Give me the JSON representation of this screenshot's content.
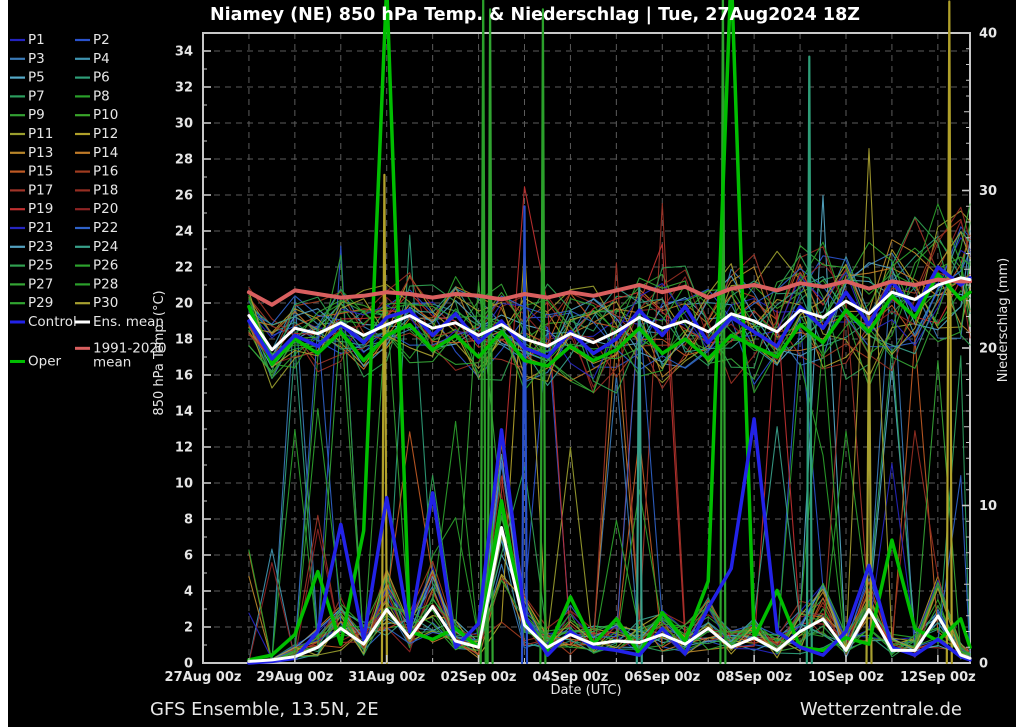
{
  "title": "Niamey  (NE)  850 hPa Temp. & Niederschlag | Tue, 27Aug2024 18Z",
  "footer": {
    "left": "GFS Ensemble, 13.5N, 2E",
    "right": "Wetterzentrale.de"
  },
  "legend": {
    "special": [
      {
        "label": "Control",
        "color": "#2222e8",
        "col": 0,
        "row": 15,
        "thick": true
      },
      {
        "label": "Ens. mean",
        "color": "#ffffff",
        "col": 1,
        "row": 15,
        "thick": true
      },
      {
        "label": "1991-2020",
        "label2": "mean",
        "color": "#d95f5f",
        "col": 1,
        "row": 16.4,
        "thick": true
      },
      {
        "label": "Oper",
        "color": "#00be00",
        "col": 0,
        "row": 17.1,
        "thick": true
      }
    ]
  },
  "chart_data": {
    "type": "line",
    "title": "Niamey  (NE)  850 hPa Temp. & Niederschlag | Tue, 27Aug2024 18Z",
    "x": {
      "label": "Date (UTC)",
      "domain_days_from_27Aug00z": [
        0,
        16.7
      ],
      "ticks": [
        {
          "t": 0,
          "label": "27Aug 00z"
        },
        {
          "t": 2,
          "label": "29Aug 00z"
        },
        {
          "t": 4,
          "label": "31Aug 00z"
        },
        {
          "t": 6,
          "label": "02Sep 00z"
        },
        {
          "t": 8,
          "label": "04Sep 00z"
        },
        {
          "t": 10,
          "label": "06Sep 00z"
        },
        {
          "t": 12,
          "label": "08Sep 00z"
        },
        {
          "t": 14,
          "label": "10Sep 00z"
        },
        {
          "t": 16,
          "label": "12Sep 00z"
        }
      ],
      "minor_tick_every_days": 1
    },
    "y_left": {
      "label": "850 hPa Temp. (°C)",
      "min": 0,
      "max": 35,
      "label_every": 2,
      "minor_every": 1
    },
    "y_right": {
      "label": "Niederschlag (mm)",
      "min": 0,
      "max": 40,
      "label_every": 10,
      "minor_every": 1
    },
    "grid": {
      "horizontal_every_degC": 2,
      "vertical_every_days": 1,
      "style": "dashed"
    },
    "time_days": [
      1,
      1.5,
      2,
      2.5,
      3,
      3.5,
      4,
      4.5,
      5,
      5.5,
      6,
      6.5,
      7,
      7.5,
      8,
      8.5,
      9,
      9.5,
      10,
      10.5,
      11,
      11.5,
      12,
      12.5,
      13,
      13.5,
      14,
      14.5,
      15,
      15.5,
      16,
      16.5,
      16.7
    ],
    "temperature_degC": {
      "ens_mean": [
        19.3,
        17.4,
        18.6,
        18.3,
        18.9,
        18.2,
        18.8,
        19.3,
        18.6,
        18.9,
        18.2,
        18.8,
        18.0,
        17.6,
        18.3,
        17.8,
        18.4,
        19.2,
        18.6,
        19.0,
        18.4,
        19.4,
        19.0,
        18.4,
        19.6,
        19.2,
        20.1,
        19.4,
        20.6,
        20.2,
        21.0,
        21.4,
        21.3
      ],
      "control": [
        19.0,
        16.9,
        18.2,
        17.6,
        18.8,
        17.8,
        19.2,
        19.6,
        18.2,
        19.4,
        17.8,
        19.0,
        17.5,
        17.0,
        18.4,
        17.2,
        18.0,
        19.6,
        18.2,
        19.8,
        17.8,
        19.2,
        18.4,
        17.6,
        19.8,
        18.6,
        20.6,
        18.8,
        21.2,
        19.6,
        22.0,
        21.0,
        21.4
      ],
      "oper": [
        19.8,
        16.6,
        18.0,
        17.2,
        18.4,
        16.8,
        18.2,
        18.8,
        17.4,
        18.2,
        17.0,
        18.4,
        16.8,
        16.5,
        17.6,
        16.8,
        17.4,
        18.6,
        17.2,
        18.0,
        16.9,
        18.2,
        17.6,
        17.0,
        18.8,
        17.8,
        19.6,
        18.4,
        20.4,
        19.2,
        21.6,
        20.2,
        20.6
      ],
      "mean_1991_2020": [
        20.6,
        19.9,
        20.7,
        20.5,
        20.3,
        20.4,
        20.6,
        20.5,
        20.3,
        20.5,
        20.4,
        20.2,
        20.5,
        20.3,
        20.6,
        20.4,
        20.7,
        21.0,
        20.6,
        20.9,
        20.3,
        20.8,
        21.0,
        20.7,
        21.1,
        20.9,
        21.2,
        20.8,
        21.2,
        21.0,
        21.3,
        21.2,
        21.2
      ]
    },
    "precip_mm": {
      "ens_mean": [
        0.1,
        0.2,
        0.4,
        1.0,
        2.2,
        1.2,
        3.4,
        1.6,
        3.6,
        1.4,
        1.0,
        8.6,
        2.4,
        1.0,
        1.8,
        1.2,
        1.4,
        1.3,
        1.8,
        1.2,
        2.2,
        1.0,
        1.6,
        0.8,
        2.0,
        2.8,
        0.8,
        3.4,
        0.8,
        0.8,
        3.0,
        0.5,
        0.3
      ],
      "control": [
        0,
        0.1,
        0.3,
        2.0,
        8.8,
        1.5,
        10.5,
        2.0,
        10.8,
        1.0,
        2.5,
        14.8,
        3.0,
        0.5,
        2.0,
        1.0,
        0.8,
        0.5,
        2.2,
        0.6,
        3.5,
        6.0,
        15.5,
        2.0,
        1.0,
        0.5,
        2.0,
        6.2,
        1.0,
        0.5,
        1.5,
        0.4,
        0.2
      ],
      "oper": [
        0.2,
        0.5,
        1.8,
        5.8,
        1.2,
        8.4,
        43,
        2.0,
        1.5,
        2.2,
        1.0,
        10.3,
        2.5,
        0.8,
        4.2,
        1.2,
        2.8,
        0.6,
        3.2,
        1.4,
        5.2,
        44,
        1.6,
        4.6,
        1.0,
        0.8,
        1.6,
        1.2,
        7.8,
        2.2,
        1.4,
        2.8,
        1.0
      ]
    },
    "notable_member_precip_spikes": [
      {
        "t": 3.95,
        "mm": 31,
        "color": "#b0a02a"
      },
      {
        "t": 6.1,
        "mm": 42.5,
        "color": "#2aa02a"
      },
      {
        "t": 6.25,
        "mm": 41.5,
        "color": "#31a531"
      },
      {
        "t": 7.0,
        "mm": 29,
        "color": "#2a52cc"
      },
      {
        "t": 7.4,
        "mm": 41.5,
        "color": "#2ba02b"
      },
      {
        "t": 9.5,
        "mm": 24,
        "color": "#38a08a"
      },
      {
        "t": 11.32,
        "mm": 43,
        "color": "#2da22d"
      },
      {
        "t": 13.2,
        "mm": 38.5,
        "color": "#2e9e78"
      },
      {
        "t": 14.5,
        "mm": 22,
        "color": "#a8a030"
      },
      {
        "t": 16.25,
        "mm": 42,
        "color": "#b0a02a"
      }
    ],
    "members": {
      "count": 30,
      "seed": 11,
      "temp_band_degC": [
        15,
        25.5
      ],
      "precip_typical_mm": [
        0,
        38
      ],
      "list": [
        {
          "label": "P1",
          "color": "#2323bf"
        },
        {
          "label": "P2",
          "color": "#2a52cc"
        },
        {
          "label": "P3",
          "color": "#3a7ab8"
        },
        {
          "label": "P4",
          "color": "#3f94b0"
        },
        {
          "label": "P5",
          "color": "#55aac8"
        },
        {
          "label": "P6",
          "color": "#2e9e78"
        },
        {
          "label": "P7",
          "color": "#2c9e5e"
        },
        {
          "label": "P8",
          "color": "#2aa02a"
        },
        {
          "label": "P9",
          "color": "#33a033"
        },
        {
          "label": "P10",
          "color": "#3aa52a"
        },
        {
          "label": "P11",
          "color": "#9a9e2e"
        },
        {
          "label": "P12",
          "color": "#b0a02a"
        },
        {
          "label": "P13",
          "color": "#b8862a"
        },
        {
          "label": "P14",
          "color": "#c07a28"
        },
        {
          "label": "P15",
          "color": "#c05a24"
        },
        {
          "label": "P16",
          "color": "#a03c20"
        },
        {
          "label": "P17",
          "color": "#a03428"
        },
        {
          "label": "P18",
          "color": "#962e22"
        },
        {
          "label": "P19",
          "color": "#c03030"
        },
        {
          "label": "P20",
          "color": "#8e2424"
        },
        {
          "label": "P21",
          "color": "#2626c0"
        },
        {
          "label": "P22",
          "color": "#2f62c8"
        },
        {
          "label": "P23",
          "color": "#52a0c0"
        },
        {
          "label": "P24",
          "color": "#38a08a"
        },
        {
          "label": "P25",
          "color": "#30a050"
        },
        {
          "label": "P26",
          "color": "#2da22d"
        },
        {
          "label": "P27",
          "color": "#35a535"
        },
        {
          "label": "P28",
          "color": "#2ba02b"
        },
        {
          "label": "P29",
          "color": "#31a531"
        },
        {
          "label": "P30",
          "color": "#a8a030"
        }
      ]
    },
    "colors": {
      "control": "#2222e8",
      "ens_mean": "#ffffff",
      "mean_1991_2020": "#d95f5f",
      "oper": "#00be00",
      "grid": "#5c5c5c",
      "frame": "#c8c8c8",
      "text": "#e6e6e6",
      "background": "#000000",
      "page": "#ffffff"
    },
    "legend_position": "top-left"
  }
}
